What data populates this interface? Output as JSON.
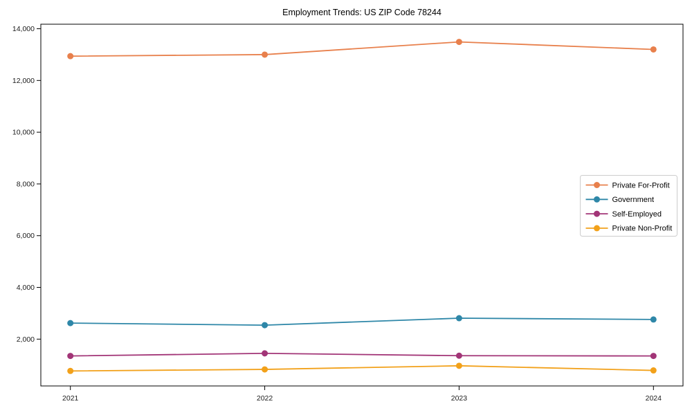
{
  "chart_data": {
    "type": "line",
    "title": "Employment Trends: US ZIP Code 78244",
    "categories": [
      "2021",
      "2022",
      "2023",
      "2024"
    ],
    "series": [
      {
        "name": "Private For-Profit",
        "color": "#e8804c",
        "values": [
          12940,
          13000,
          13490,
          13200
        ]
      },
      {
        "name": "Government",
        "color": "#2e87a8",
        "values": [
          2620,
          2540,
          2810,
          2760
        ]
      },
      {
        "name": "Self-Employed",
        "color": "#a23577",
        "values": [
          1350,
          1450,
          1360,
          1350
        ]
      },
      {
        "name": "Private Non-Profit",
        "color": "#f2a11a",
        "values": [
          770,
          830,
          970,
          790
        ]
      }
    ],
    "xlabel": "",
    "ylabel": "",
    "ylim": [
      190,
      14175
    ],
    "yticks": [
      2000,
      4000,
      6000,
      8000,
      10000,
      12000,
      14000
    ],
    "grid": false,
    "legend_position": "right-middle",
    "axis_color": "#000000",
    "tick_label_color": "#1a1a1a",
    "legend_border_color": "#cccccc",
    "background": "#ffffff"
  }
}
